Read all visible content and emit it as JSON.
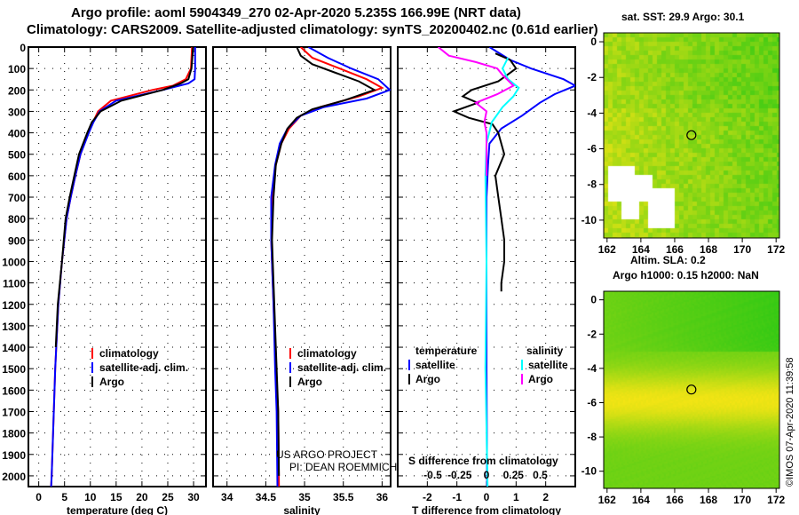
{
  "title_line1": "Argo profile: aoml 5904349_270 02-Apr-2020 5.235S 166.99E (NRT data)",
  "title_line2": "Climatology: CARS2009. Satellite-adjusted climatology: synTS_20200402.nc (0.61d earlier)",
  "credit": "US ARGO PROJECT",
  "pi": "PI: DEAN ROEMMICH",
  "watermark": "©IMOS 07-Apr-2020 11:39:58",
  "colors": {
    "argo": "#000000",
    "clim": "#ff0000",
    "sat": "#0000ff",
    "sal_sat": "#00ffff",
    "sal_argo": "#ff00ff"
  },
  "chart_data": [
    {
      "type": "line",
      "name": "temperature",
      "xlabel": "temperature (deg C)",
      "ylabel": "depth",
      "xlim": [
        -2,
        32.4
      ],
      "ylim": [
        2050,
        0
      ],
      "xticks": [
        0,
        5,
        10,
        15,
        20,
        25,
        30
      ],
      "yticks": [
        0,
        100,
        200,
        300,
        400,
        500,
        600,
        700,
        800,
        900,
        1000,
        1100,
        1200,
        1300,
        1400,
        1500,
        1600,
        1700,
        1800,
        1900,
        2000
      ],
      "legend": [
        "climatology",
        "satellite-adj. clim.",
        "Argo"
      ],
      "series": [
        {
          "name": "climatology",
          "color": "#ff0000",
          "depth": [
            0,
            100,
            150,
            180,
            200,
            250,
            300,
            350,
            400,
            500,
            600,
            700,
            800,
            1000,
            1200,
            1500,
            2000,
            2050
          ],
          "values": [
            29.7,
            29.5,
            28.5,
            26,
            22,
            14,
            11.5,
            10.5,
            9.6,
            8.1,
            7.1,
            6.2,
            5.4,
            4.5,
            3.8,
            3.2,
            2.5,
            2.4
          ]
        },
        {
          "name": "satellite-adj. clim.",
          "color": "#0000ff",
          "depth": [
            0,
            100,
            150,
            170,
            200,
            250,
            300,
            350,
            400,
            500,
            600,
            700,
            800,
            1000,
            1200,
            1500,
            2000,
            2050
          ],
          "values": [
            30.3,
            30.3,
            30.2,
            29,
            24,
            15,
            11.8,
            10.6,
            9.7,
            8.1,
            7.1,
            6.2,
            5.4,
            4.5,
            3.8,
            3.2,
            2.5,
            2.4
          ]
        },
        {
          "name": "Argo",
          "color": "#000000",
          "depth": [
            0,
            100,
            150,
            170,
            200,
            250,
            300,
            350,
            400,
            500,
            600,
            700,
            800,
            1000,
            1200,
            1400
          ],
          "values": [
            29.9,
            29.6,
            29,
            27.5,
            24,
            16,
            12,
            10.3,
            9.4,
            7.8,
            6.9,
            6,
            5.2,
            4.5,
            3.7,
            3.3
          ]
        }
      ]
    },
    {
      "type": "line",
      "name": "salinity",
      "xlabel": "salinity",
      "ylabel": "depth",
      "xlim": [
        33.82,
        36.11
      ],
      "ylim": [
        2050,
        0
      ],
      "xticks": [
        34,
        34.5,
        35,
        35.5,
        36
      ],
      "legend": [
        "climatology",
        "satellite-adj. clim.",
        "Argo"
      ],
      "series": [
        {
          "name": "climatology",
          "color": "#ff0000",
          "depth": [
            0,
            50,
            100,
            150,
            190,
            230,
            280,
            320,
            380,
            450,
            550,
            700,
            900,
            1200,
            1500,
            1700,
            2050
          ],
          "values": [
            34.95,
            35.1,
            35.45,
            35.8,
            36.0,
            35.7,
            35.2,
            34.95,
            34.8,
            34.7,
            34.63,
            34.58,
            34.57,
            34.6,
            34.63,
            34.66,
            34.67
          ]
        },
        {
          "name": "satellite-adj. clim.",
          "color": "#0000ff",
          "depth": [
            0,
            50,
            100,
            150,
            200,
            240,
            280,
            320,
            380,
            450,
            550,
            700,
            900,
            1200,
            1500,
            1700,
            2050
          ],
          "values": [
            35.05,
            35.3,
            35.6,
            35.95,
            36.1,
            35.8,
            35.25,
            34.95,
            34.78,
            34.68,
            34.62,
            34.57,
            34.57,
            34.6,
            34.62,
            34.64,
            34.65
          ]
        },
        {
          "name": "Argo",
          "color": "#000000",
          "depth": [
            0,
            40,
            80,
            120,
            160,
            200,
            250,
            290,
            330,
            380,
            450,
            550,
            700,
            900,
            1100,
            1400,
            1700,
            2000
          ],
          "values": [
            34.9,
            34.95,
            35.1,
            35.4,
            35.7,
            35.9,
            35.5,
            35.1,
            34.9,
            34.78,
            34.7,
            34.63,
            34.6,
            34.58,
            34.6,
            34.63,
            34.66,
            34.67
          ]
        }
      ]
    },
    {
      "type": "line",
      "name": "difference",
      "xlabel": "T difference from climatology",
      "x2label": "S difference from climatology",
      "xlim": [
        -3,
        3
      ],
      "ylim": [
        2050,
        0
      ],
      "xticks": [
        -2,
        -1,
        0,
        1,
        2
      ],
      "x2ticks": [
        -0.5,
        -0.25,
        0,
        0.25,
        0.5
      ],
      "legend": {
        "temperature": [
          "satellite",
          "Argo"
        ],
        "salinity": [
          "satellite",
          "Argo"
        ]
      },
      "series": [
        {
          "name": "T satellite",
          "color": "#0000ff",
          "depth": [
            0,
            60,
            100,
            150,
            180,
            220,
            260,
            320,
            380,
            450,
            550,
            700,
            1000,
            1500,
            2050
          ],
          "values": [
            0.1,
            0.8,
            1.5,
            2.6,
            3.0,
            2.3,
            1.8,
            1.2,
            0.5,
            0.1,
            0.05,
            0,
            0,
            0,
            0.02
          ]
        },
        {
          "name": "T Argo",
          "color": "#000000",
          "depth": [
            30,
            60,
            100,
            130,
            160,
            200,
            230,
            260,
            300,
            330,
            360,
            400,
            500,
            600,
            700,
            800,
            900,
            1000,
            1100,
            1140
          ],
          "values": [
            0.3,
            0.8,
            1.0,
            0.7,
            0.4,
            -0.5,
            -0.8,
            -0.3,
            -1.1,
            -0.6,
            0.2,
            0.4,
            0.6,
            0.3,
            0.4,
            0.5,
            0.6,
            0.6,
            0.5,
            0.5
          ]
        },
        {
          "name": "S satellite",
          "color": "#00ffff",
          "depth": [
            50,
            100,
            150,
            190,
            230,
            280,
            350,
            450,
            600,
            1000,
            1500,
            2050
          ],
          "values": [
            0.2,
            0.15,
            0.2,
            0.3,
            0.25,
            0.15,
            0.05,
            0,
            -0.01,
            0,
            -0.01,
            0.01
          ]
        },
        {
          "name": "S Argo",
          "color": "#ff00ff",
          "depth": [
            0,
            40,
            70,
            100,
            130,
            180,
            220,
            260,
            300,
            350,
            400,
            500,
            600
          ],
          "values": [
            -0.45,
            -0.35,
            -0.1,
            0.1,
            0.15,
            0.25,
            0.1,
            -0.1,
            0,
            -0.02,
            0,
            0,
            0
          ]
        }
      ]
    },
    {
      "type": "heatmap",
      "name": "sst-map",
      "title": "sat. SST: 29.9 Argo: 30.1",
      "xticks": [
        162,
        164,
        166,
        168,
        170,
        172
      ],
      "yticks": [
        0,
        -2,
        -4,
        -6,
        -8,
        -10
      ],
      "xlim": [
        161.8,
        172.2
      ],
      "ylim": [
        -11,
        0.5
      ],
      "marker": [
        166.99,
        -5.235
      ]
    },
    {
      "type": "heatmap",
      "name": "sla-map",
      "title": "Altim. SLA: 0.2",
      "subtitle": "Argo h1000: 0.15 h2000: NaN",
      "xticks": [
        162,
        164,
        166,
        168,
        170,
        172
      ],
      "yticks": [
        0,
        -2,
        -4,
        -6,
        -8,
        -10
      ],
      "xlim": [
        161.8,
        172.2
      ],
      "ylim": [
        -11,
        0.5
      ],
      "marker": [
        166.99,
        -5.235
      ]
    }
  ]
}
